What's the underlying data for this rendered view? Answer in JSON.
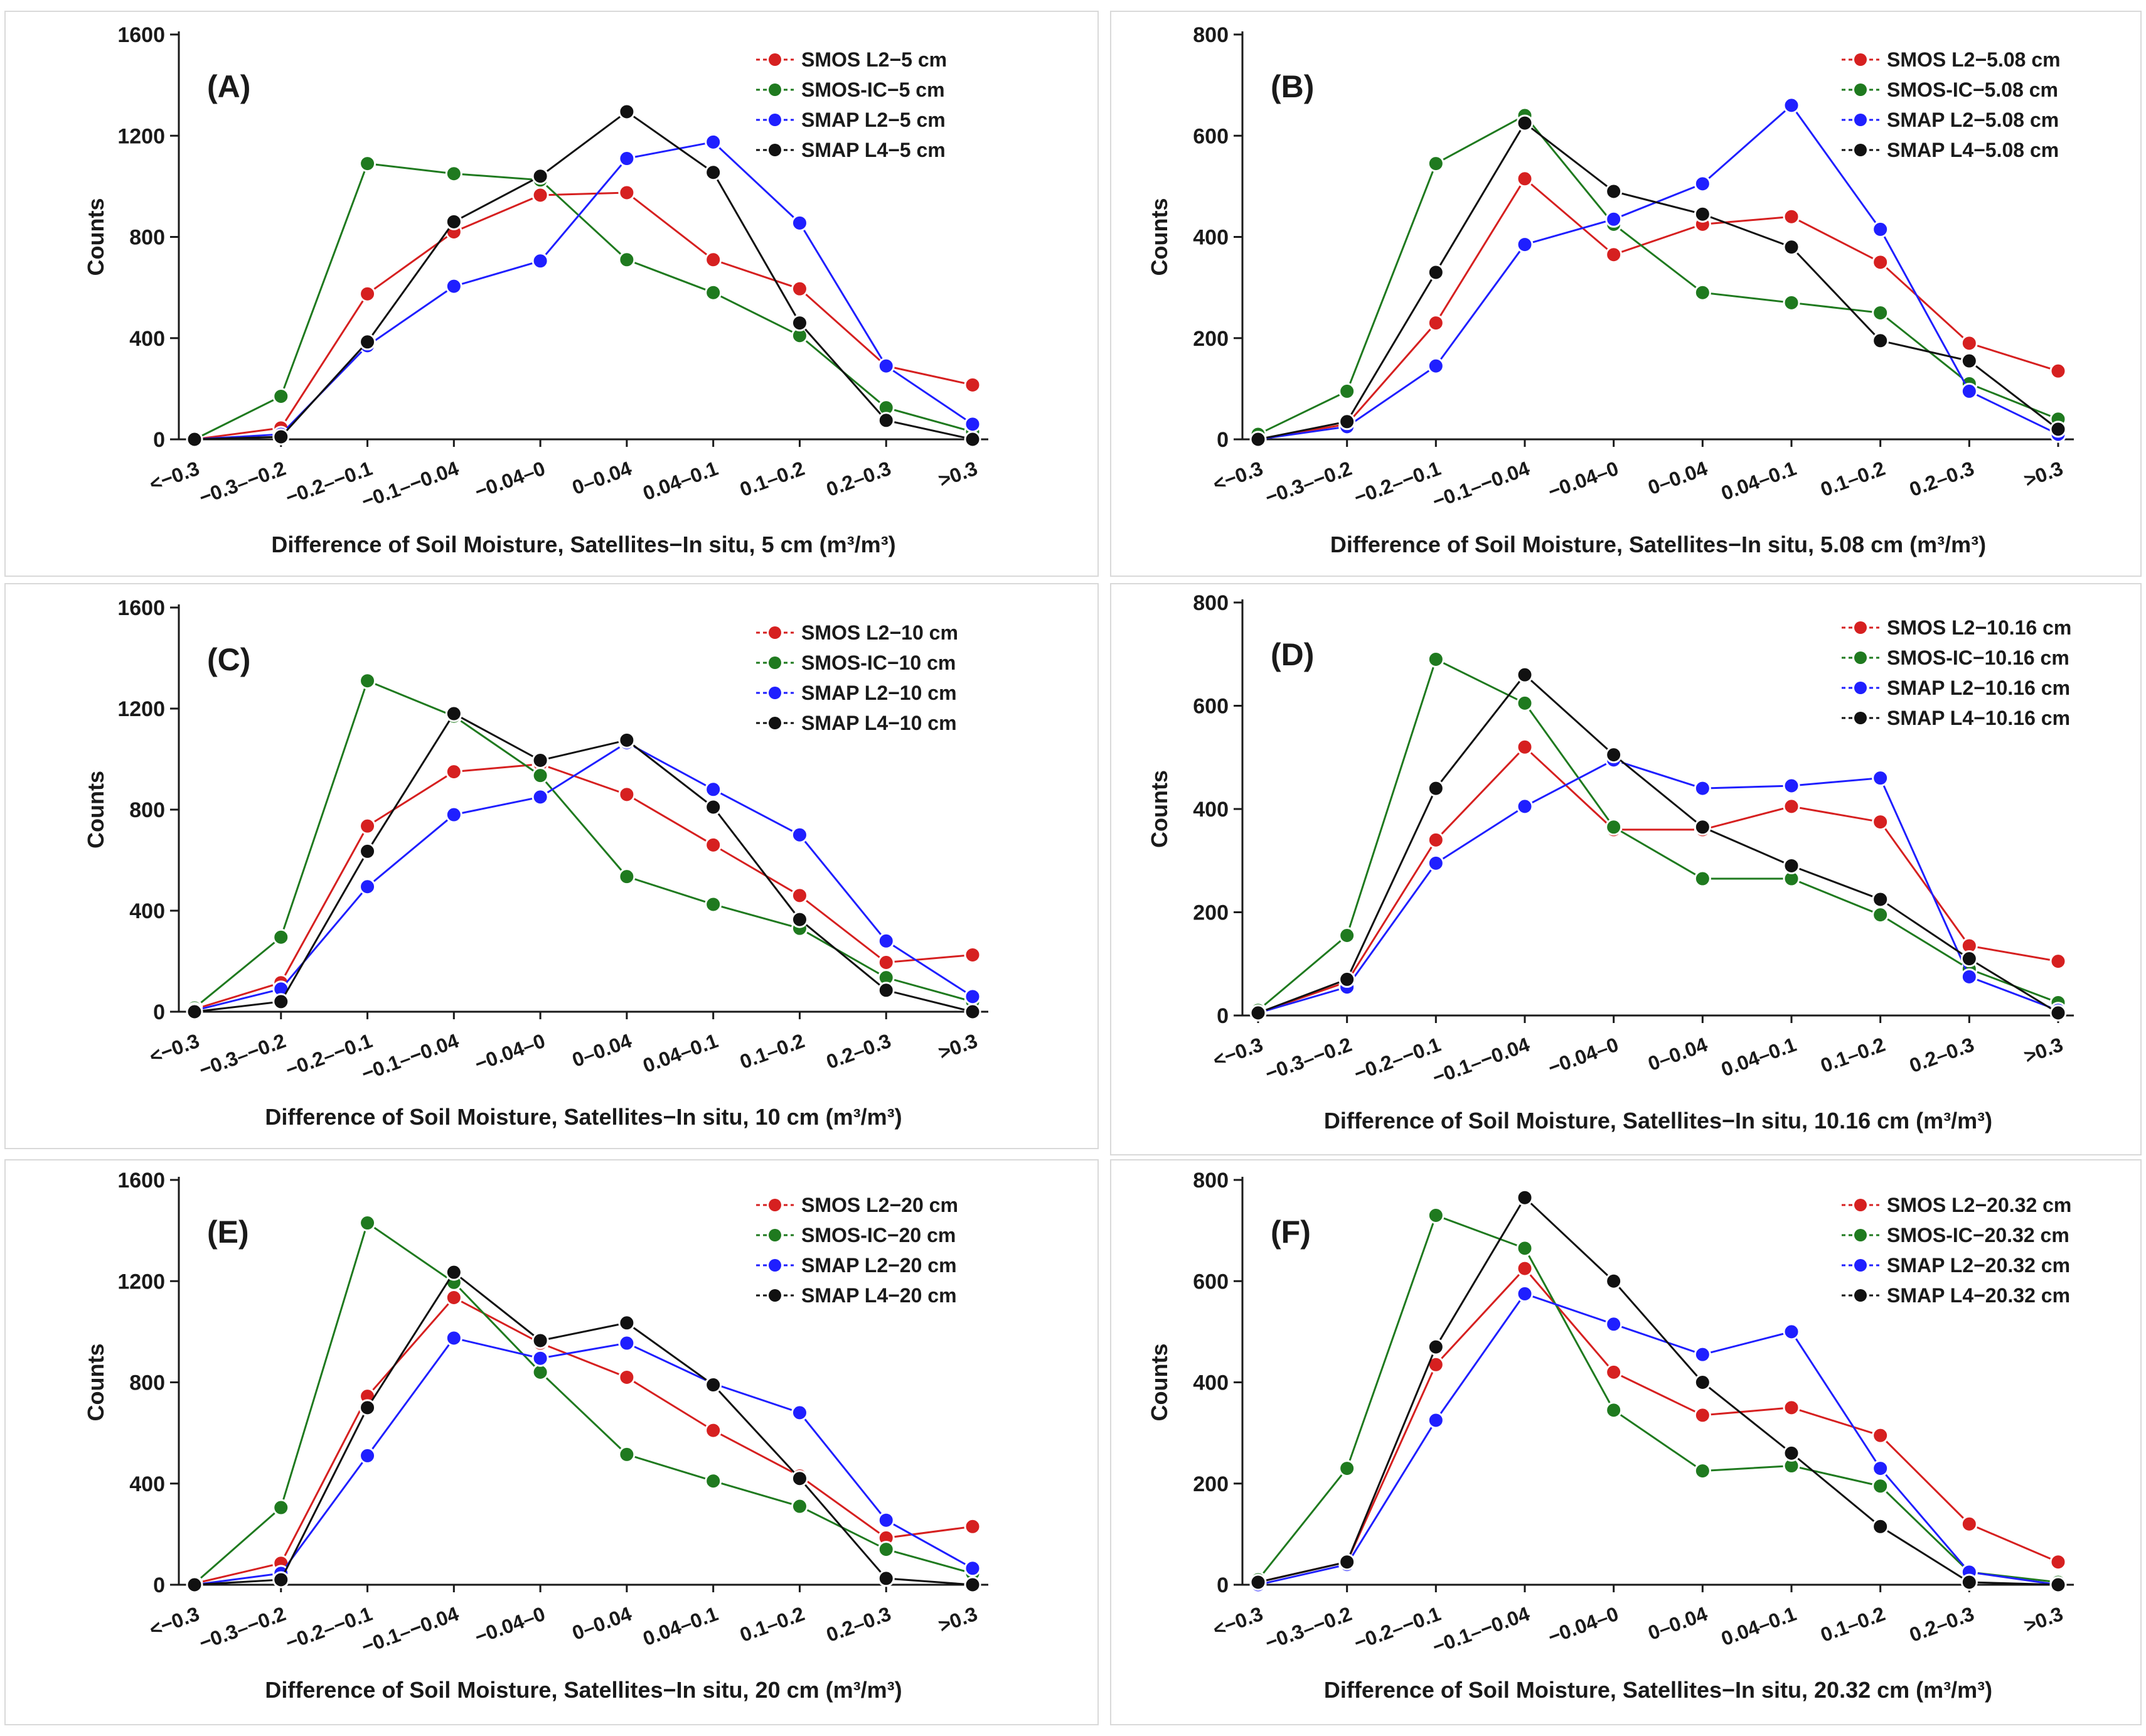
{
  "figure": {
    "background": "#ffffff",
    "panel_border_color": "#d9d9d9",
    "axis_color": "#1a1a1a"
  },
  "series_colors": {
    "SMOS L2": "#d62020",
    "SMOS-IC": "#1f7a1f",
    "SMAP L2": "#1f1fff",
    "SMAP L4": "#111111"
  },
  "chart_data": [
    {
      "type": "line",
      "panel_label": "(A)",
      "xlabel": "Difference of Soil Moisture, Satellites−In situ, 5 cm (m³/m³)",
      "ylabel": "Counts",
      "categories": [
        "<−0.3",
        "−0.3–−0.2",
        "−0.2–−0.1",
        "−0.1–−0.04",
        "−0.04–0",
        "0–0.04",
        "0.04–0.1",
        "0.1–0.2",
        "0.2–0.3",
        ">0.3"
      ],
      "yticks": [
        0,
        400,
        800,
        1200,
        1600
      ],
      "ylim": [
        0,
        1600
      ],
      "legend_position": "top-right",
      "series": [
        {
          "name": "SMOS L2−5 cm",
          "key": "SMOS L2",
          "values": [
            0,
            45,
            575,
            820,
            965,
            975,
            710,
            595,
            290,
            215
          ]
        },
        {
          "name": "SMOS-IC−5 cm",
          "key": "SMOS-IC",
          "values": [
            0,
            170,
            1090,
            1050,
            1025,
            710,
            580,
            410,
            125,
            30
          ]
        },
        {
          "name": "SMAP L2−5 cm",
          "key": "SMAP L2",
          "values": [
            0,
            20,
            370,
            605,
            705,
            1110,
            1175,
            855,
            290,
            60
          ]
        },
        {
          "name": "SMAP L4−5 cm",
          "key": "SMAP L4",
          "values": [
            0,
            10,
            385,
            860,
            1040,
            1295,
            1055,
            460,
            75,
            0
          ]
        }
      ]
    },
    {
      "type": "line",
      "panel_label": "(B)",
      "xlabel": "Difference of Soil Moisture, Satellites−In situ, 5.08 cm (m³/m³)",
      "ylabel": "Counts",
      "categories": [
        "<−0.3",
        "−0.3–−0.2",
        "−0.2–−0.1",
        "−0.1–−0.04",
        "−0.04–0",
        "0–0.04",
        "0.04–0.1",
        "0.1–0.2",
        "0.2–0.3",
        ">0.3"
      ],
      "yticks": [
        0,
        200,
        400,
        600,
        800
      ],
      "ylim": [
        0,
        800
      ],
      "legend_position": "top-right",
      "series": [
        {
          "name": "SMOS L2−5.08 cm",
          "key": "SMOS L2",
          "values": [
            0,
            30,
            230,
            515,
            365,
            425,
            440,
            350,
            190,
            135
          ]
        },
        {
          "name": "SMOS-IC−5.08 cm",
          "key": "SMOS-IC",
          "values": [
            10,
            95,
            545,
            640,
            425,
            290,
            270,
            250,
            110,
            40
          ]
        },
        {
          "name": "SMAP L2−5.08 cm",
          "key": "SMAP L2",
          "values": [
            0,
            25,
            145,
            385,
            435,
            505,
            660,
            415,
            95,
            10
          ]
        },
        {
          "name": "SMAP L4−5.08 cm",
          "key": "SMAP L4",
          "values": [
            0,
            35,
            330,
            625,
            490,
            445,
            380,
            195,
            155,
            20
          ]
        }
      ]
    },
    {
      "type": "line",
      "panel_label": "(C)",
      "xlabel": "Difference of Soil Moisture, Satellites−In situ, 10 cm (m³/m³)",
      "ylabel": "Counts",
      "categories": [
        "<−0.3",
        "−0.3–−0.2",
        "−0.2–−0.1",
        "−0.1–−0.04",
        "−0.04–0",
        "0–0.04",
        "0.04–0.1",
        "0.1–0.2",
        "0.2–0.3",
        ">0.3"
      ],
      "yticks": [
        0,
        400,
        800,
        1200,
        1600
      ],
      "ylim": [
        0,
        1600
      ],
      "legend_position": "top-right",
      "series": [
        {
          "name": "SMOS L2−10 cm",
          "key": "SMOS L2",
          "values": [
            10,
            115,
            735,
            950,
            980,
            860,
            660,
            460,
            195,
            225
          ]
        },
        {
          "name": "SMOS-IC−10 cm",
          "key": "SMOS-IC",
          "values": [
            15,
            295,
            1310,
            1170,
            935,
            535,
            425,
            330,
            135,
            40
          ]
        },
        {
          "name": "SMAP L2−10 cm",
          "key": "SMAP L2",
          "values": [
            5,
            90,
            495,
            780,
            850,
            1065,
            880,
            700,
            280,
            60
          ]
        },
        {
          "name": "SMAP L4−10 cm",
          "key": "SMAP L4",
          "values": [
            0,
            40,
            635,
            1180,
            995,
            1075,
            810,
            365,
            85,
            0
          ]
        }
      ]
    },
    {
      "type": "line",
      "panel_label": "(D)",
      "xlabel": "Difference of Soil Moisture, Satellites−In situ, 10.16 cm (m³/m³)",
      "ylabel": "Counts",
      "categories": [
        "<−0.3",
        "−0.3–−0.2",
        "−0.2–−0.1",
        "−0.1–−0.04",
        "−0.04–0",
        "0–0.04",
        "0.04–0.1",
        "0.1–0.2",
        "0.2–0.3",
        ">0.3"
      ],
      "yticks": [
        0,
        200,
        400,
        600,
        800
      ],
      "ylim": [
        0,
        800
      ],
      "legend_position": "top-right",
      "series": [
        {
          "name": "SMOS L2−10.16 cm",
          "key": "SMOS L2",
          "values": [
            5,
            65,
            340,
            520,
            360,
            360,
            405,
            375,
            135,
            105
          ]
        },
        {
          "name": "SMOS-IC−10.16 cm",
          "key": "SMOS-IC",
          "values": [
            10,
            155,
            690,
            605,
            365,
            265,
            265,
            195,
            90,
            25
          ]
        },
        {
          "name": "SMAP L2−10.16 cm",
          "key": "SMAP L2",
          "values": [
            5,
            55,
            295,
            405,
            495,
            440,
            445,
            460,
            75,
            10
          ]
        },
        {
          "name": "SMAP L4−10.16 cm",
          "key": "SMAP L4",
          "values": [
            5,
            70,
            440,
            660,
            505,
            365,
            290,
            225,
            110,
            5
          ]
        }
      ]
    },
    {
      "type": "line",
      "panel_label": "(E)",
      "xlabel": "Difference of Soil Moisture, Satellites−In situ, 20 cm (m³/m³)",
      "ylabel": "Counts",
      "categories": [
        "<−0.3",
        "−0.3–−0.2",
        "−0.2–−0.1",
        "−0.1–−0.04",
        "−0.04–0",
        "0–0.04",
        "0.04–0.1",
        "0.1–0.2",
        "0.2–0.3",
        ">0.3"
      ],
      "yticks": [
        0,
        400,
        800,
        1200,
        1600
      ],
      "ylim": [
        0,
        1600
      ],
      "legend_position": "top-right",
      "series": [
        {
          "name": "SMOS L2−20 cm",
          "key": "SMOS L2",
          "values": [
            5,
            85,
            745,
            1135,
            955,
            820,
            610,
            430,
            185,
            230
          ]
        },
        {
          "name": "SMOS-IC−20 cm",
          "key": "SMOS-IC",
          "values": [
            5,
            305,
            1430,
            1195,
            840,
            515,
            410,
            310,
            140,
            45
          ]
        },
        {
          "name": "SMAP L2−20 cm",
          "key": "SMAP L2",
          "values": [
            0,
            45,
            510,
            975,
            895,
            955,
            795,
            680,
            255,
            65
          ]
        },
        {
          "name": "SMAP L4−20 cm",
          "key": "SMAP L4",
          "values": [
            0,
            20,
            700,
            1235,
            965,
            1035,
            790,
            420,
            25,
            0
          ]
        }
      ]
    },
    {
      "type": "line",
      "panel_label": "(F)",
      "xlabel": "Difference of Soil Moisture, Satellites−In situ, 20.32 cm (m³/m³)",
      "ylabel": "Counts",
      "categories": [
        "<−0.3",
        "−0.3–−0.2",
        "−0.2–−0.1",
        "−0.1–−0.04",
        "−0.04–0",
        "0–0.04",
        "0.04–0.1",
        "0.1–0.2",
        "0.2–0.3",
        ">0.3"
      ],
      "yticks": [
        0,
        200,
        400,
        600,
        800
      ],
      "ylim": [
        0,
        800
      ],
      "legend_position": "top-right",
      "series": [
        {
          "name": "SMOS L2−20.32 cm",
          "key": "SMOS L2",
          "values": [
            5,
            45,
            435,
            625,
            420,
            335,
            350,
            295,
            120,
            45
          ]
        },
        {
          "name": "SMOS-IC−20.32 cm",
          "key": "SMOS-IC",
          "values": [
            10,
            230,
            730,
            665,
            345,
            225,
            235,
            195,
            25,
            5
          ]
        },
        {
          "name": "SMAP L2−20.32 cm",
          "key": "SMAP L2",
          "values": [
            0,
            40,
            325,
            575,
            515,
            455,
            500,
            230,
            25,
            0
          ]
        },
        {
          "name": "SMAP L4−20.32 cm",
          "key": "SMAP L4",
          "values": [
            5,
            45,
            470,
            765,
            600,
            400,
            260,
            115,
            5,
            0
          ]
        }
      ]
    }
  ]
}
